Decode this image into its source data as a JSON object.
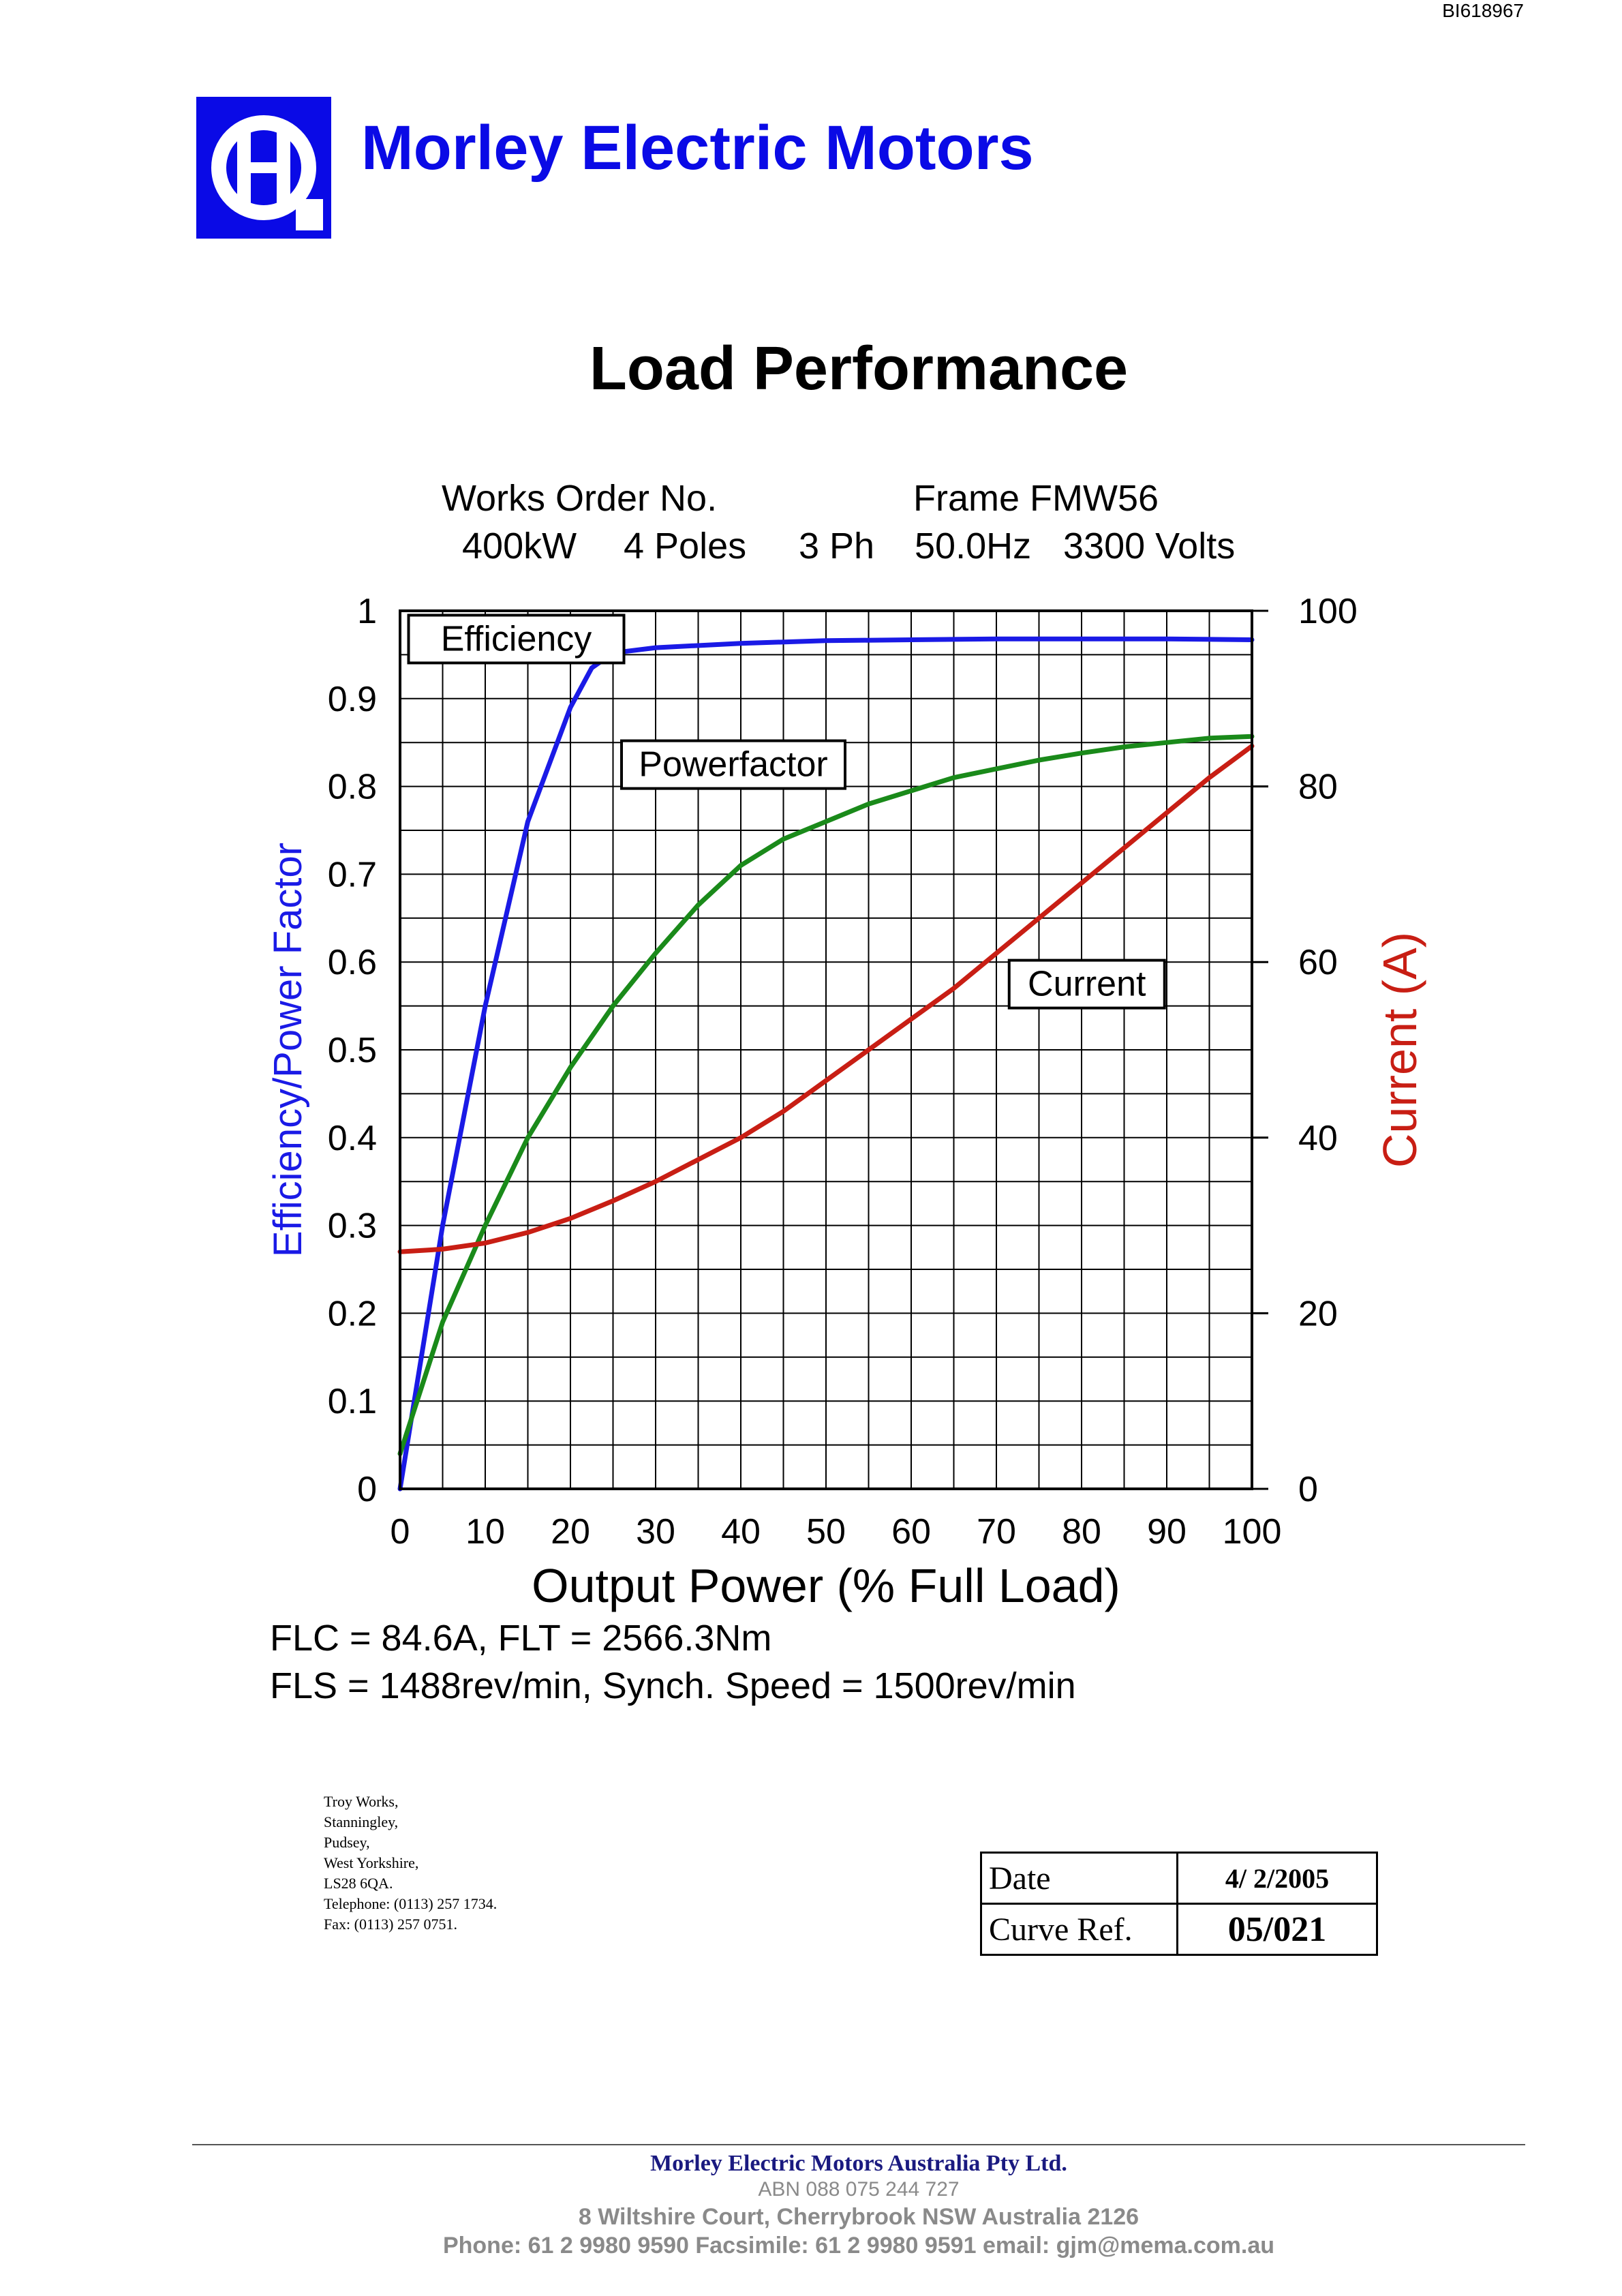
{
  "document": {
    "id": "BI618967",
    "brand_name": "Morley Electric Motors",
    "title": "Load Performance"
  },
  "specs": {
    "works_order": "Works Order No.",
    "frame": "Frame FMW56",
    "power": "400kW",
    "poles": "4 Poles",
    "phase": "3 Ph",
    "frequency": "50.0Hz",
    "voltage": "3300 Volts"
  },
  "chart_data": {
    "type": "line",
    "xlabel": "Output Power (% Full Load)",
    "ylabel_left": "Efficiency/Power Factor",
    "ylabel_right": "Current (A)",
    "xlim": [
      0,
      100
    ],
    "ylim_left": [
      0,
      1
    ],
    "ylim_right": [
      0,
      100
    ],
    "x_ticks": [
      "0",
      "10",
      "20",
      "30",
      "40",
      "50",
      "60",
      "70",
      "80",
      "90",
      "100"
    ],
    "y_left_ticks": [
      "0",
      "0.1",
      "0.2",
      "0.3",
      "0.4",
      "0.5",
      "0.6",
      "0.7",
      "0.8",
      "0.9",
      "1"
    ],
    "y_right_ticks": [
      "0",
      "20",
      "40",
      "60",
      "80",
      "100"
    ],
    "grid": true,
    "series": [
      {
        "name": "Efficiency",
        "axis": "left",
        "color": "#1a1ae6",
        "x": [
          0,
          5,
          10,
          15,
          20,
          22.5,
          25,
          30,
          40,
          50,
          60,
          70,
          80,
          90,
          100
        ],
        "y": [
          0,
          0.3,
          0.55,
          0.76,
          0.89,
          0.935,
          0.952,
          0.958,
          0.963,
          0.966,
          0.967,
          0.968,
          0.968,
          0.968,
          0.967
        ]
      },
      {
        "name": "Powerfactor",
        "axis": "left",
        "color": "#1a8a1a",
        "x": [
          0,
          5,
          10,
          15,
          20,
          25,
          30,
          35,
          40,
          45,
          50,
          55,
          60,
          65,
          70,
          75,
          80,
          85,
          90,
          95,
          100
        ],
        "y": [
          0.04,
          0.19,
          0.3,
          0.4,
          0.48,
          0.55,
          0.61,
          0.665,
          0.71,
          0.74,
          0.76,
          0.78,
          0.795,
          0.81,
          0.82,
          0.83,
          0.838,
          0.845,
          0.85,
          0.855,
          0.857
        ]
      },
      {
        "name": "Current",
        "axis": "right",
        "color": "#c81e14",
        "x": [
          0,
          5,
          10,
          15,
          20,
          25,
          30,
          35,
          40,
          45,
          50,
          55,
          60,
          65,
          70,
          75,
          80,
          85,
          90,
          95,
          100
        ],
        "y": [
          27.0,
          27.3,
          28.0,
          29.2,
          30.8,
          32.8,
          35.0,
          37.5,
          40.0,
          43.0,
          46.5,
          50.0,
          53.5,
          57.0,
          61.0,
          65.0,
          69.0,
          73.0,
          77.0,
          81.0,
          84.6
        ]
      }
    ],
    "annotations": [
      "Efficiency",
      "Powerfactor",
      "Current"
    ]
  },
  "notes": {
    "flc_line": "FLC =   84.6A, FLT =     2566.3Nm",
    "fls_line": "FLS = 1488rev/min, Synch. Speed = 1500rev/min"
  },
  "address_lines": [
    "Troy Works,",
    "Stanningley,",
    "Pudsey,",
    "West Yorkshire,",
    "LS28 6QA.",
    "Telephone: (0113) 257 1734.",
    "Fax: (0113) 257 0751."
  ],
  "curve_info": {
    "date_label": "Date",
    "date_value": "4/ 2/2005",
    "curve_ref_label": "Curve Ref.",
    "curve_ref_value": "05/021"
  },
  "footer": {
    "company": "Morley Electric Motors Australia Pty Ltd.",
    "abn": "ABN 088 075 244 727",
    "address": "8 Wiltshire Court, Cherrybrook NSW Australia 2126",
    "contact": "Phone: 61 2 9980 9590   Facsimile: 61 2 9980 9591 email: gjm@mema.com.au"
  },
  "colors": {
    "brand": "#0a0ae6",
    "efficiency": "#1a1ae6",
    "powerfactor": "#1a8a1a",
    "current": "#c81e14"
  }
}
